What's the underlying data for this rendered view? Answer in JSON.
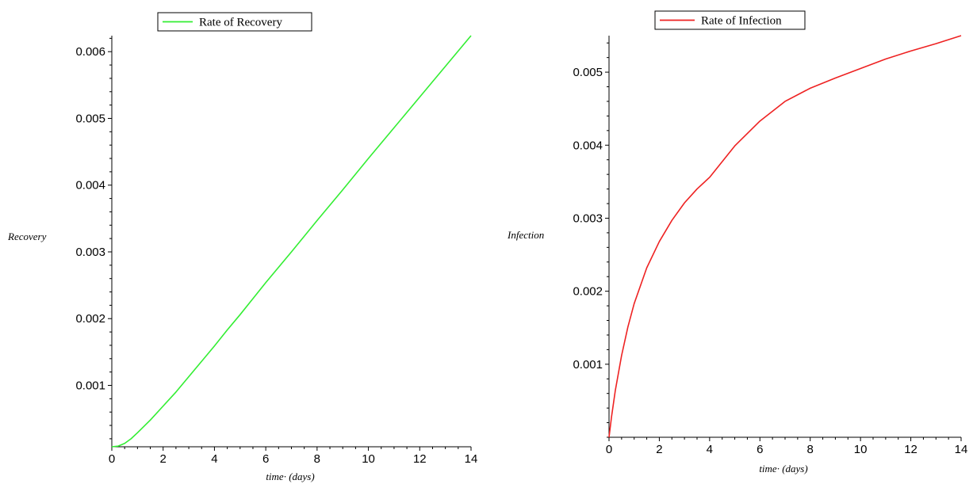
{
  "chart_data": [
    {
      "type": "line",
      "legend": "Rate of Recovery",
      "legend_position": "top",
      "xlabel": "time· (days)",
      "ylabel": "Recovery",
      "xlim": [
        0,
        14
      ],
      "ylim": [
        8e-05,
        0.00624
      ],
      "x_ticks": [
        0,
        2,
        4,
        6,
        8,
        10,
        12,
        14
      ],
      "y_ticks": [
        0.001,
        0.002,
        0.003,
        0.004,
        0.005,
        0.006
      ],
      "y_tick_labels": [
        "0.001",
        "0.002",
        "0.003",
        "0.004",
        "0.005",
        "0.006"
      ],
      "grid": false,
      "series": [
        {
          "name": "Rate of Recovery",
          "color": "#33ee33",
          "x": [
            0,
            0.25,
            0.5,
            0.75,
            1,
            1.5,
            2,
            2.5,
            3,
            3.5,
            4,
            4.5,
            5,
            5.5,
            6,
            7,
            8,
            9,
            10,
            11,
            12,
            13,
            14
          ],
          "y": [
            8e-05,
            9e-05,
            0.00013,
            0.0002,
            0.00029,
            0.00048,
            0.00069,
            0.0009,
            0.00113,
            0.00136,
            0.00159,
            0.00183,
            0.00206,
            0.0023,
            0.00254,
            0.003,
            0.00347,
            0.00393,
            0.0044,
            0.00486,
            0.00532,
            0.00578,
            0.00624
          ]
        }
      ]
    },
    {
      "type": "line",
      "legend": "Rate of Infection",
      "legend_position": "top",
      "xlabel": "time· (days)",
      "ylabel": "Infection",
      "xlim": [
        0,
        14
      ],
      "ylim": [
        0,
        0.0055
      ],
      "x_ticks": [
        0,
        2,
        4,
        6,
        8,
        10,
        12,
        14
      ],
      "y_ticks": [
        0.001,
        0.002,
        0.003,
        0.004,
        0.005
      ],
      "y_tick_labels": [
        "0.001",
        "0.002",
        "0.003",
        "0.004",
        "0.005"
      ],
      "grid": false,
      "series": [
        {
          "name": "Rate of Infection",
          "color": "#ee2222",
          "x": [
            0,
            0.1,
            0.25,
            0.5,
            0.75,
            1,
            1.5,
            2,
            2.5,
            3,
            3.5,
            4,
            5,
            6,
            7,
            8,
            9,
            10,
            11,
            12,
            13,
            14
          ],
          "y": [
            0,
            0.00028,
            0.00064,
            0.00112,
            0.00151,
            0.00183,
            0.00232,
            0.00268,
            0.00297,
            0.00321,
            0.0034,
            0.00356,
            0.00399,
            0.00433,
            0.0046,
            0.00478,
            0.00492,
            0.00505,
            0.00518,
            0.00529,
            0.00539,
            0.0055
          ]
        }
      ]
    }
  ]
}
